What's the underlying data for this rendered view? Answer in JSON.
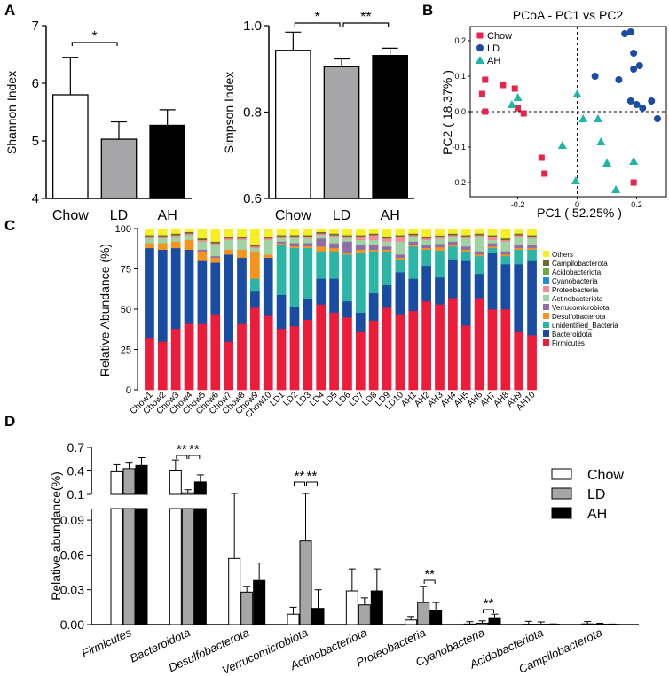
{
  "panel_labels": [
    "A",
    "B",
    "C",
    "D"
  ],
  "colors": {
    "chow": "#ffffff",
    "ld": "#a6a6a8",
    "ah": "#000000",
    "pcoa_chow": "#e8244a",
    "pcoa_ld": "#1a4ca3",
    "pcoa_ah": "#1fb5a8"
  },
  "chart_data": [
    {
      "id": "shannon",
      "type": "bar",
      "ylabel": "Shannon Index",
      "categories": [
        "Chow",
        "LD",
        "AH"
      ],
      "values": [
        5.8,
        5.03,
        5.27
      ],
      "errors": [
        0.65,
        0.3,
        0.27
      ],
      "ylim": [
        4,
        7
      ],
      "yticks": [
        "4",
        "5",
        "6",
        "7"
      ],
      "annotations": [
        {
          "from": 0,
          "to": 1,
          "label": "*"
        }
      ]
    },
    {
      "id": "simpson",
      "type": "bar",
      "ylabel": "Simpson Index",
      "categories": [
        "Chow",
        "LD",
        "AH"
      ],
      "values": [
        0.943,
        0.905,
        0.931
      ],
      "errors": [
        0.042,
        0.018,
        0.017
      ],
      "ylim": [
        0.6,
        1.0
      ],
      "yticks": [
        "0.6",
        "0.8",
        "1.0"
      ],
      "annotations": [
        {
          "from": 0,
          "to": 1,
          "label": "*"
        },
        {
          "from": 1,
          "to": 2,
          "label": "**"
        }
      ]
    },
    {
      "id": "pcoa",
      "type": "scatter",
      "title": "PCoA - PC1 vs PC2",
      "xlabel": "PC1 ( 52.25% )",
      "ylabel": "PC2 ( 18.37% )",
      "xlim": [
        -0.36,
        0.3
      ],
      "ylim": [
        -0.24,
        0.24
      ],
      "xticks": [
        -0.2,
        0,
        0.2
      ],
      "yticks": [
        -0.2,
        -0.1,
        0,
        0.1,
        0.2
      ],
      "xtick_labels": [
        "-0.2",
        "0",
        "0.2"
      ],
      "ytick_labels": [
        "-0.2",
        "-0.1",
        "0.0",
        "0.1",
        "0.2"
      ],
      "legend": [
        "Chow",
        "LD",
        "AH"
      ],
      "series": [
        {
          "name": "Chow",
          "marker": "square",
          "points": [
            [
              -0.31,
              0.09
            ],
            [
              -0.32,
              0.05
            ],
            [
              -0.31,
              0.0
            ],
            [
              -0.25,
              0.075
            ],
            [
              -0.21,
              0.065
            ],
            [
              -0.2,
              0.01
            ],
            [
              -0.18,
              -0.005
            ],
            [
              -0.12,
              -0.13
            ],
            [
              -0.11,
              -0.175
            ],
            [
              0.19,
              -0.2
            ]
          ]
        },
        {
          "name": "LD",
          "marker": "circle",
          "points": [
            [
              0.06,
              0.1
            ],
            [
              0.14,
              0.09
            ],
            [
              0.16,
              0.22
            ],
            [
              0.18,
              0.225
            ],
            [
              0.19,
              0.12
            ],
            [
              0.19,
              0.165
            ],
            [
              0.21,
              0.13
            ],
            [
              0.2,
              0.02
            ],
            [
              0.18,
              0.03
            ],
            [
              0.25,
              0.03
            ],
            [
              0.22,
              0.01
            ],
            [
              0.27,
              -0.02
            ]
          ]
        },
        {
          "name": "AH",
          "marker": "triangle",
          "points": [
            [
              -0.2,
              0.04
            ],
            [
              -0.22,
              0.02
            ],
            [
              -0.05,
              -0.095
            ],
            [
              0.0,
              0.05
            ],
            [
              0.02,
              -0.02
            ],
            [
              0.07,
              -0.02
            ],
            [
              0.08,
              -0.085
            ],
            [
              0.1,
              -0.145
            ],
            [
              -0.005,
              -0.195
            ],
            [
              0.13,
              -0.22
            ],
            [
              0.19,
              -0.14
            ]
          ]
        }
      ]
    },
    {
      "id": "composition",
      "type": "bar",
      "stacked": true,
      "ylabel": "Relative Abundance (%)",
      "ylim": [
        0,
        100
      ],
      "yticks": [
        "0",
        "25",
        "50",
        "75",
        "100"
      ],
      "categories": [
        "Chow1",
        "Chow2",
        "Chow3",
        "Chow4",
        "Chow5",
        "Chow6",
        "Chow7",
        "Chow8",
        "Chow9",
        "Chow10",
        "LD1",
        "LD2",
        "LD3",
        "LD4",
        "LD5",
        "LD6",
        "LD7",
        "LD8",
        "LD9",
        "LD10",
        "AH1",
        "AH2",
        "AH3",
        "AH4",
        "AH5",
        "AH6",
        "AH7",
        "AH8",
        "AH9",
        "AH10"
      ],
      "series": [
        {
          "name": "Firmicutes",
          "color": "#ec1c3a",
          "values": [
            32,
            30,
            38,
            41,
            41,
            47,
            30,
            41,
            51,
            46,
            38,
            40,
            44,
            53,
            48,
            45,
            36,
            43,
            51,
            47,
            49,
            55,
            51,
            57,
            40,
            57,
            50,
            50,
            36,
            34
          ]
        },
        {
          "name": "Bacteroidota",
          "color": "#1a4ca3",
          "values": [
            56,
            57,
            50,
            46,
            39,
            32,
            54,
            41,
            10,
            36,
            21,
            12,
            13,
            16,
            21,
            10,
            12,
            17,
            14,
            26,
            20,
            22,
            16,
            24,
            40,
            15,
            35,
            28,
            42,
            46
          ]
        },
        {
          "name": "unidentified_Bacteria",
          "color": "#2bb5a6",
          "values": [
            0,
            0,
            0,
            0,
            0,
            0,
            0,
            0,
            8,
            0,
            31,
            37,
            32,
            17,
            17,
            29,
            37,
            26,
            21,
            8,
            20,
            10,
            16,
            8,
            6,
            11,
            3,
            5,
            9,
            7
          ]
        },
        {
          "name": "Desulfobacterota",
          "color": "#f7941d",
          "values": [
            3,
            4,
            4,
            6,
            6,
            3,
            3,
            5,
            17,
            2,
            1,
            1,
            1,
            3,
            2,
            1,
            2,
            1,
            1,
            1,
            1,
            1,
            2,
            1,
            1,
            1,
            1,
            1,
            1,
            1
          ]
        },
        {
          "name": "Verrucomicrobiota",
          "color": "#8e6fa8",
          "values": [
            0,
            0,
            0,
            0,
            1,
            1,
            0,
            0,
            0,
            0,
            1,
            2,
            2,
            5,
            3,
            7,
            3,
            3,
            2,
            2,
            2,
            2,
            2,
            2,
            2,
            2,
            2,
            2,
            2,
            2
          ]
        },
        {
          "name": "Actinobacteriota",
          "color": "#9fd4a2",
          "values": [
            3,
            3,
            3,
            3,
            5,
            7,
            6,
            6,
            2,
            9,
            2,
            3,
            3,
            2,
            4,
            2,
            3,
            3,
            3,
            8,
            3,
            3,
            3,
            3,
            5,
            9,
            2,
            6,
            5,
            4
          ]
        },
        {
          "name": "Proteobacteria",
          "color": "#f28b96",
          "values": [
            1,
            1,
            1,
            1,
            1,
            1,
            1,
            1,
            1,
            1,
            1,
            1,
            1,
            1,
            1,
            1,
            2,
            3,
            2,
            3,
            1,
            1,
            1,
            1,
            1,
            1,
            2,
            1,
            1,
            1
          ]
        },
        {
          "name": "Cyanobacteria",
          "color": "#1e90d6",
          "values": [
            0,
            0,
            0,
            0,
            0,
            0,
            0,
            0,
            0,
            0,
            0,
            0,
            0,
            0,
            0,
            0,
            0,
            0,
            0,
            0,
            0,
            0,
            0,
            0,
            0,
            0,
            0,
            0,
            0,
            0
          ]
        },
        {
          "name": "Acidobacteriota",
          "color": "#6aad3e",
          "values": [
            0,
            0,
            0,
            0,
            0,
            0,
            0,
            0,
            0,
            0,
            0,
            0,
            0,
            0,
            0,
            0,
            0,
            0,
            0,
            0,
            0,
            0,
            0,
            0,
            0,
            0,
            0,
            0,
            0,
            0
          ]
        },
        {
          "name": "Campilobacterota",
          "color": "#6b6b2a",
          "values": [
            1,
            1,
            1,
            1,
            1,
            1,
            1,
            1,
            1,
            1,
            1,
            1,
            1,
            1,
            1,
            1,
            1,
            1,
            1,
            1,
            1,
            1,
            1,
            1,
            1,
            1,
            1,
            1,
            1,
            1
          ]
        },
        {
          "name": "Others",
          "color": "#f7ef22",
          "values": [
            4,
            4,
            3,
            2,
            6,
            8,
            5,
            5,
            10,
            5,
            4,
            4,
            4,
            2,
            3,
            4,
            4,
            3,
            5,
            4,
            3,
            5,
            4,
            3,
            4,
            3,
            4,
            6,
            3,
            4
          ]
        }
      ],
      "legend_order": [
        "Others",
        "Campilobacterota",
        "Acidobacteriota",
        "Cyanobacteria",
        "Proteobacteria",
        "Actinobacteriota",
        "Verrucomicrobiota",
        "Desulfobacterota",
        "unidentified_Bacteria",
        "Bacteroidota",
        "Firmicutes"
      ]
    },
    {
      "id": "phylum_abundance",
      "type": "bar",
      "ylabel": "Relative abundance(%)",
      "broken_axis": {
        "lower": [
          0,
          0.1
        ],
        "upper": [
          0.1,
          0.7
        ]
      },
      "yticks_lower": [
        "0.00",
        "0.03",
        "0.06",
        "0.09"
      ],
      "yticks_upper": [
        "0.1",
        "0.4",
        "0.7"
      ],
      "groups": [
        "Chow",
        "LD",
        "AH"
      ],
      "categories": [
        "Firmicutes",
        "Bacteroidota",
        "Desulfobacterota",
        "Verrucomicrobiota",
        "Actinobacteriota",
        "Proteobacteria",
        "Cyanobacteria",
        "Acidobacteriota",
        "Campilobacterota"
      ],
      "series": [
        {
          "name": "Chow",
          "values": [
            0.39,
            0.4,
            0.057,
            0.009,
            0.029,
            0.004,
            0.0005,
            0.0003,
            0.0006
          ],
          "errors": [
            0.09,
            0.14,
            0.055,
            0.006,
            0.019,
            0.003,
            0.002,
            0.0025,
            0.002
          ]
        },
        {
          "name": "LD",
          "values": [
            0.43,
            0.12,
            0.028,
            0.072,
            0.017,
            0.019,
            0.0012,
            0.0003,
            0.0004
          ],
          "errors": [
            0.07,
            0.04,
            0.005,
            0.039,
            0.006,
            0.014,
            0.002,
            0.002,
            0.0007
          ]
        },
        {
          "name": "AH",
          "values": [
            0.47,
            0.26,
            0.038,
            0.014,
            0.029,
            0.012,
            0.006,
            0.0003,
            0.0003
          ],
          "errors": [
            0.1,
            0.09,
            0.015,
            0.016,
            0.019,
            0.007,
            0.003,
            0.0003,
            0.0002
          ]
        }
      ],
      "annotations": [
        {
          "category": "Bacteroidota",
          "label": "**"
        },
        {
          "category": "Bacteroidota",
          "label": "**"
        },
        {
          "category": "Verrucomicrobiota",
          "label": "**"
        },
        {
          "category": "Verrucomicrobiota",
          "label": "**"
        },
        {
          "category": "Proteobacteria",
          "label": "**"
        },
        {
          "category": "Cyanobacteria",
          "label": "**"
        }
      ]
    }
  ]
}
